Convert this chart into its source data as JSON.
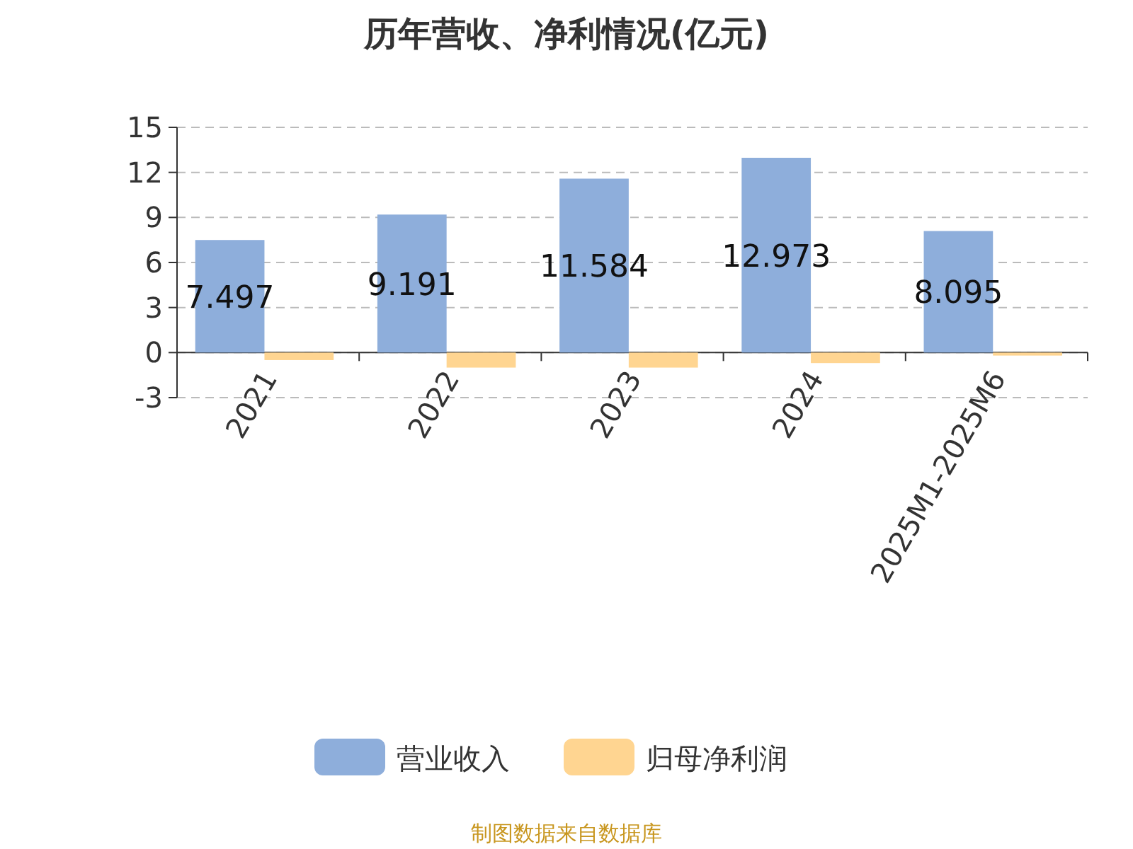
{
  "chart_data": {
    "type": "bar",
    "title": "历年营收、净利情况(亿元)",
    "categories": [
      "2021",
      "2022",
      "2023",
      "2024",
      "2025M1-2025M6"
    ],
    "series": [
      {
        "name": "营业收入",
        "color": "#8eaedb",
        "values": [
          7.497,
          9.191,
          11.584,
          12.973,
          8.095
        ],
        "value_labels": [
          "7.497",
          "9.191",
          "11.584",
          "12.973",
          "8.095"
        ]
      },
      {
        "name": "归母净利润",
        "color": "#ffd591",
        "values": [
          -0.5,
          -1.0,
          -1.0,
          -0.7,
          -0.2
        ]
      }
    ],
    "ylim": [
      -3,
      15
    ],
    "yticks": [
      -3,
      0,
      3,
      6,
      9,
      12,
      15
    ],
    "grid": "y",
    "legend": "bottom",
    "annotations": [
      "制图数据来自数据库"
    ]
  }
}
